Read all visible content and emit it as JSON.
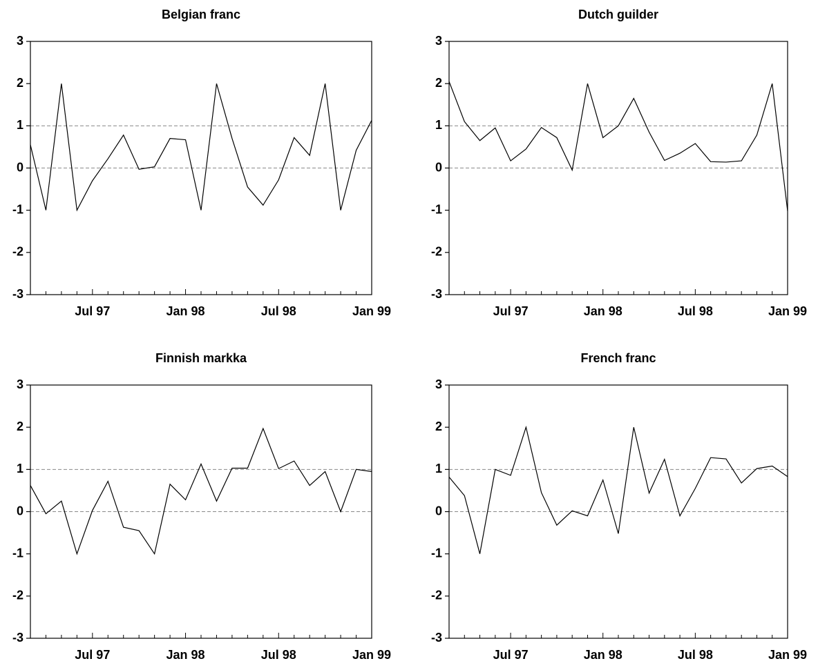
{
  "chart_data": [
    {
      "type": "line",
      "title": "Belgian franc",
      "categories": [
        null,
        null,
        null,
        null,
        "Jul 97",
        null,
        null,
        null,
        null,
        null,
        "Jan 98",
        null,
        null,
        null,
        null,
        null,
        "Jul 98",
        null,
        null,
        null,
        null,
        null,
        "Jan 99"
      ],
      "series": [
        {
          "name": "Belgian franc",
          "color": "#000000",
          "values": [
            0.55,
            -1,
            2,
            -1,
            -0.3,
            0.22,
            0.78,
            -0.03,
            0.03,
            0.7,
            0.67,
            -1,
            2,
            0.7,
            -0.45,
            -0.88,
            -0.28,
            0.72,
            0.3,
            2,
            -1,
            0.42,
            1.13
          ]
        }
      ],
      "ylim": [
        -3,
        3
      ],
      "yticks": [
        -3,
        -2,
        -1,
        0,
        1,
        2,
        3
      ],
      "reference_lines": [
        0,
        1
      ]
    },
    {
      "type": "line",
      "title": "Dutch guilder",
      "categories": [
        null,
        null,
        null,
        null,
        "Jul 97",
        null,
        null,
        null,
        null,
        null,
        "Jan 98",
        null,
        null,
        null,
        null,
        null,
        "Jul 98",
        null,
        null,
        null,
        null,
        null,
        "Jan 99"
      ],
      "series": [
        {
          "name": "Dutch guilder",
          "color": "#000000",
          "values": [
            2.05,
            1.1,
            0.65,
            0.95,
            0.17,
            0.45,
            0.96,
            0.72,
            -0.05,
            2,
            0.72,
            1.0,
            1.65,
            0.85,
            0.18,
            0.35,
            0.58,
            0.15,
            0.14,
            0.17,
            0.78,
            2,
            -1.02
          ]
        }
      ],
      "ylim": [
        -3,
        3
      ],
      "yticks": [
        -3,
        -2,
        -1,
        0,
        1,
        2,
        3
      ],
      "reference_lines": [
        0,
        1
      ]
    },
    {
      "type": "line",
      "title": "Finnish markka",
      "categories": [
        null,
        null,
        null,
        null,
        "Jul 97",
        null,
        null,
        null,
        null,
        null,
        "Jan 98",
        null,
        null,
        null,
        null,
        null,
        "Jul 98",
        null,
        null,
        null,
        null,
        null,
        "Jan 99"
      ],
      "series": [
        {
          "name": "Finnish markka",
          "color": "#000000",
          "values": [
            0.62,
            -0.05,
            0.25,
            -1,
            0.03,
            0.72,
            -0.37,
            -0.45,
            -1,
            0.65,
            0.28,
            1.13,
            0.25,
            1.03,
            1.03,
            1.97,
            1.02,
            1.2,
            0.62,
            0.95,
            0,
            1,
            0.95
          ]
        }
      ],
      "ylim": [
        -3,
        3
      ],
      "yticks": [
        -3,
        -2,
        -1,
        0,
        1,
        2,
        3
      ],
      "reference_lines": [
        0,
        1
      ]
    },
    {
      "type": "line",
      "title": "French franc",
      "categories": [
        null,
        null,
        null,
        null,
        "Jul 97",
        null,
        null,
        null,
        null,
        null,
        "Jan 98",
        null,
        null,
        null,
        null,
        null,
        "Jul 98",
        null,
        null,
        null,
        null,
        null,
        "Jan 99"
      ],
      "series": [
        {
          "name": "French franc",
          "color": "#000000",
          "values": [
            0.82,
            0.38,
            -1,
            1,
            0.86,
            2,
            0.45,
            -0.32,
            0.02,
            -0.1,
            0.75,
            -0.52,
            2,
            0.44,
            1.24,
            -0.1,
            0.55,
            1.28,
            1.25,
            0.68,
            1.02,
            1.08,
            0.83
          ]
        }
      ],
      "ylim": [
        -3,
        3
      ],
      "yticks": [
        -3,
        -2,
        -1,
        0,
        1,
        2,
        3
      ],
      "reference_lines": [
        0,
        1
      ]
    }
  ]
}
